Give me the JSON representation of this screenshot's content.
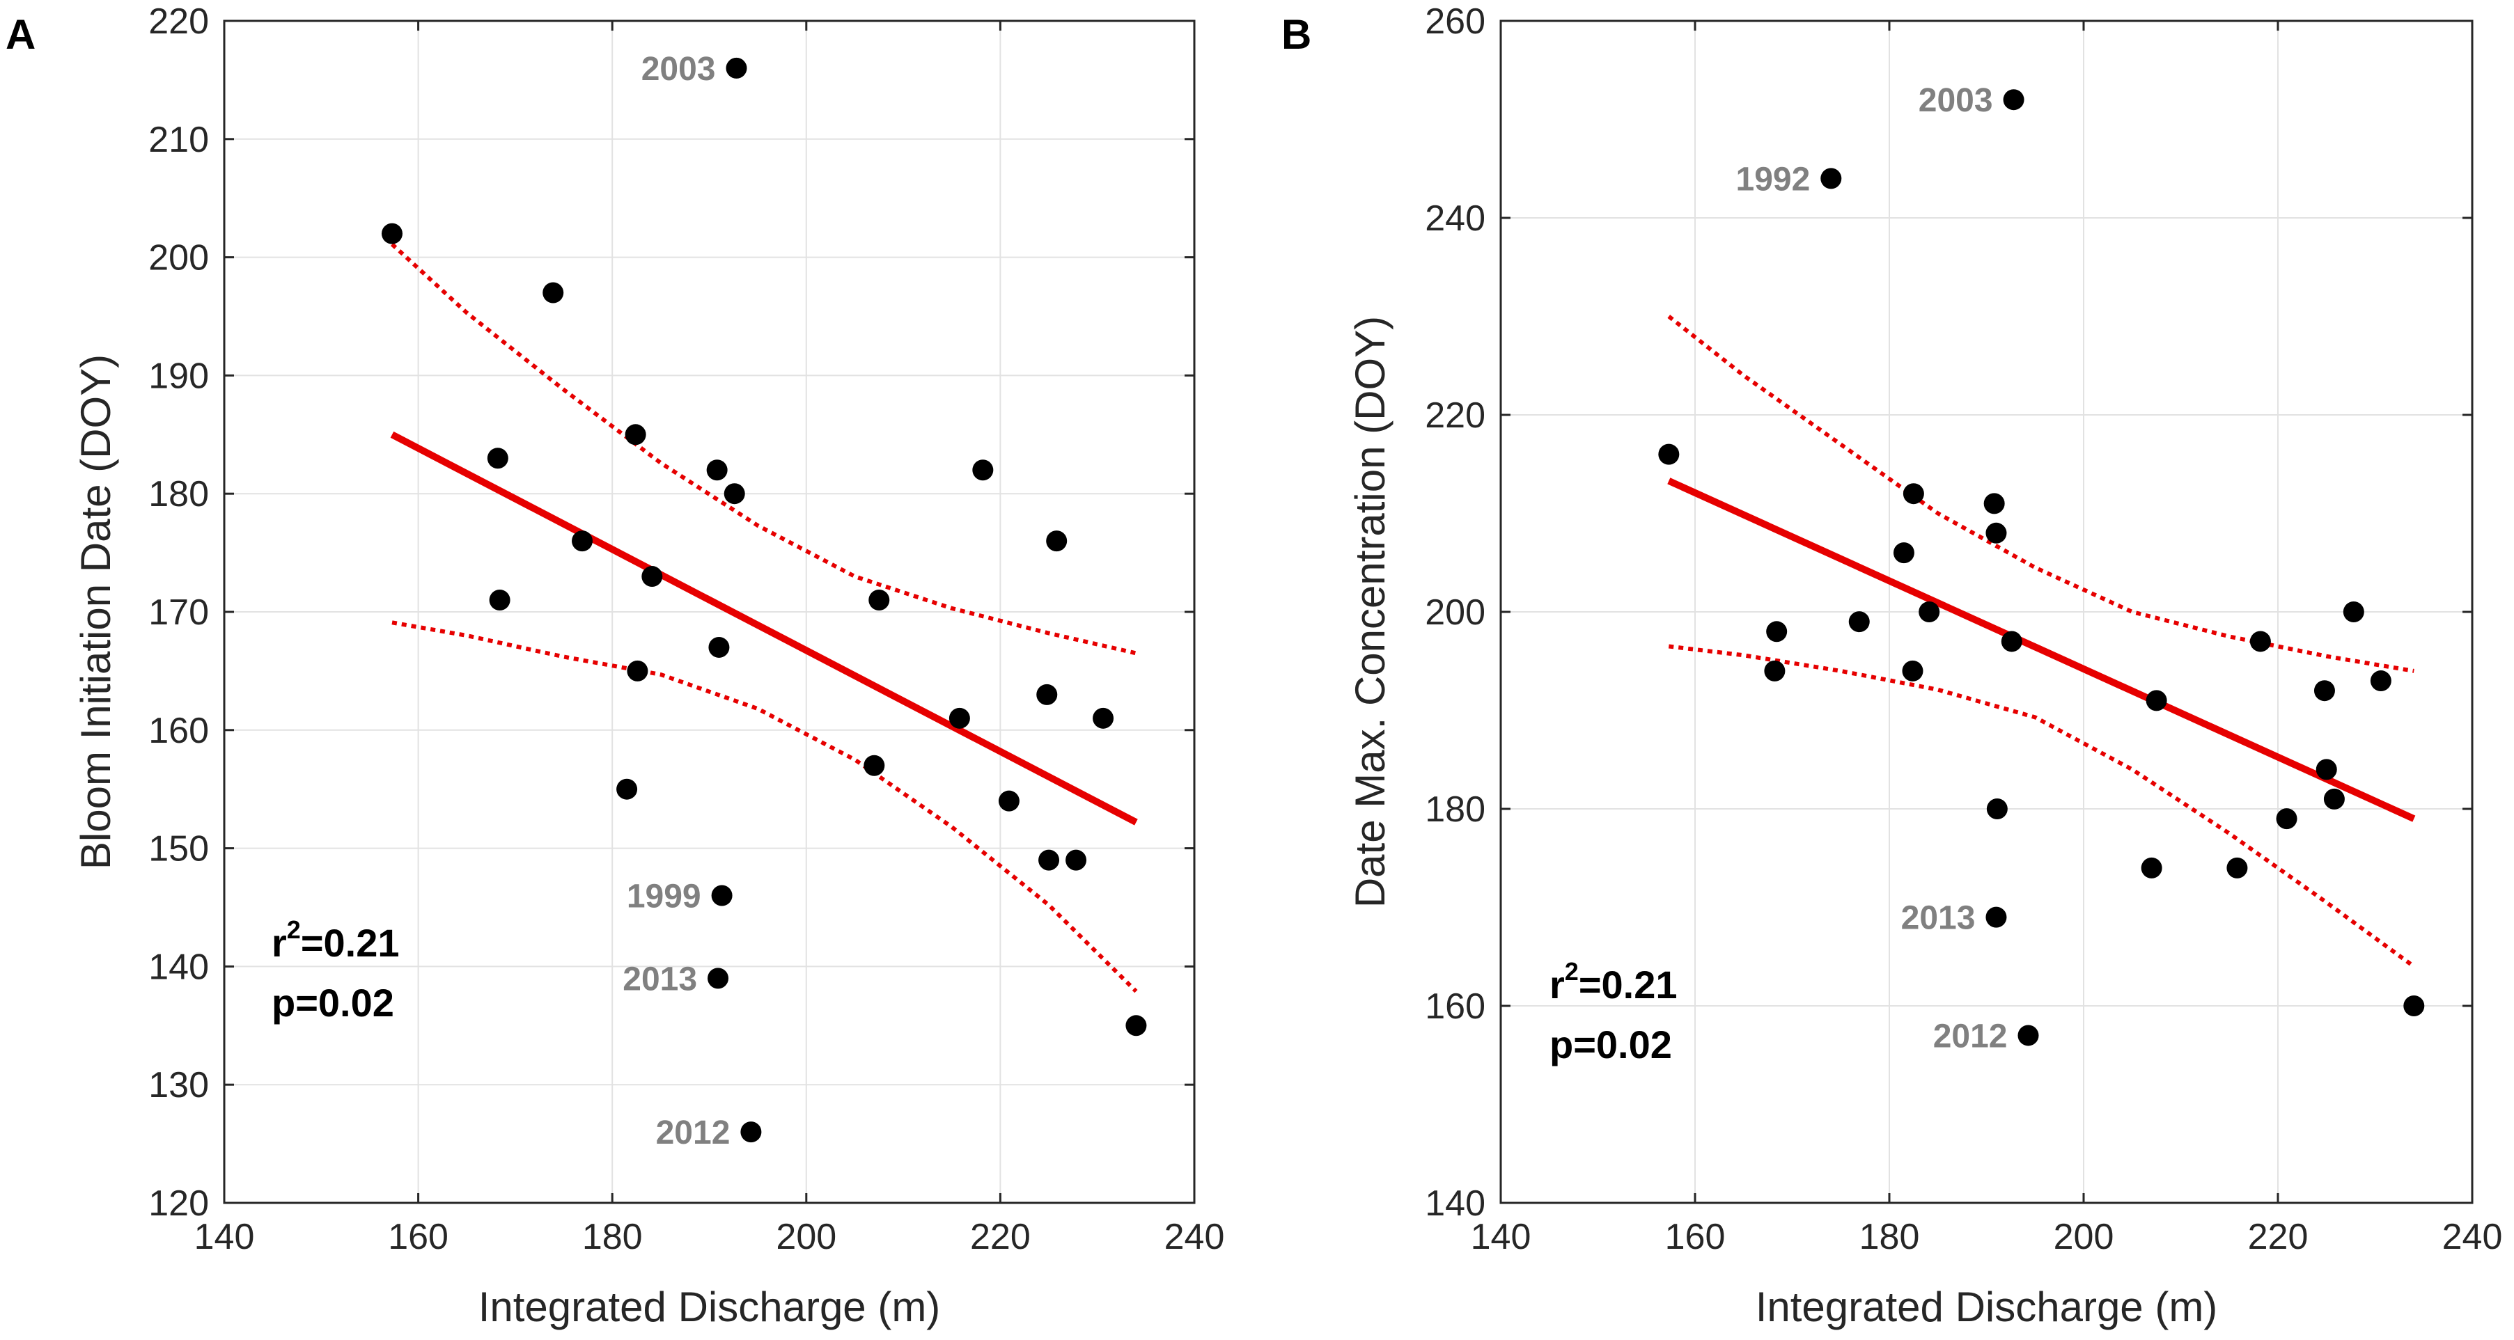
{
  "chart_data": [
    {
      "type": "scatter",
      "panel_letter": "A",
      "title": "",
      "xlabel": "Integrated Discharge (m)",
      "ylabel": "Bloom Initiation Date (DOY)",
      "xlim": [
        140,
        240
      ],
      "ylim": [
        120,
        220
      ],
      "xticks": [
        140,
        160,
        180,
        200,
        220,
        240
      ],
      "yticks": [
        120,
        130,
        140,
        150,
        160,
        170,
        180,
        190,
        200,
        210,
        220
      ],
      "grid": true,
      "points": {
        "x": [
          157.3,
          168.2,
          168.4,
          173.9,
          176.9,
          181.5,
          182.4,
          182.6,
          184.1,
          190.8,
          191.0,
          191.3,
          192.6,
          192.8,
          207.0,
          207.5,
          215.8,
          218.2,
          220.9,
          224.8,
          225.0,
          225.8,
          227.8,
          230.6,
          234.0,
          194.3,
          190.9
        ],
        "y": [
          202,
          183,
          171,
          197,
          176,
          155,
          185,
          165,
          173,
          182,
          167,
          146,
          180,
          216,
          157,
          171,
          161,
          182,
          154,
          163,
          149,
          176,
          149,
          161,
          135,
          126,
          139
        ]
      },
      "fit_line": {
        "x": [
          157.3,
          234.0
        ],
        "y": [
          185.0,
          152.2
        ]
      },
      "confidence_upper": {
        "x": [
          157.3,
          165,
          175,
          185,
          195,
          205,
          215,
          225,
          234
        ],
        "y": [
          201.1,
          195.3,
          188.8,
          182.6,
          177.3,
          173.0,
          170.3,
          168.2,
          166.5
        ]
      },
      "confidence_lower": {
        "x": [
          157.3,
          165,
          175,
          185,
          195,
          205,
          215,
          225,
          234
        ],
        "y": [
          169.1,
          168.0,
          166.2,
          164.7,
          161.8,
          157.5,
          151.8,
          145.2,
          137.9
        ]
      },
      "annotations": [
        {
          "text": "2003",
          "x": 192.8,
          "y": 216
        },
        {
          "text": "1999",
          "x": 191.3,
          "y": 146
        },
        {
          "text": "2013",
          "x": 190.9,
          "y": 139
        },
        {
          "text": "2012",
          "x": 194.3,
          "y": 126
        }
      ],
      "stats": {
        "r2_label": "r",
        "r2_sup": "2",
        "r2_value": "=0.21",
        "p_text": "p=0.02"
      }
    },
    {
      "type": "scatter",
      "panel_letter": "B",
      "title": "",
      "xlabel": "Integrated Discharge (m)",
      "ylabel": "Date Max. Concentration (DOY)",
      "xlim": [
        140,
        240
      ],
      "ylim": [
        140,
        260
      ],
      "xticks": [
        140,
        160,
        180,
        200,
        220,
        240
      ],
      "yticks": [
        140,
        160,
        180,
        200,
        220,
        240,
        260
      ],
      "grid": true,
      "points": {
        "x": [
          157.3,
          168.2,
          168.4,
          176.9,
          181.5,
          182.4,
          182.5,
          184.1,
          190.8,
          191.0,
          191.1,
          192.6,
          192.8,
          174.0,
          207.0,
          207.5,
          215.8,
          218.2,
          220.9,
          224.8,
          225.0,
          225.8,
          227.8,
          230.6,
          234.0,
          191.0,
          194.3
        ],
        "y": [
          216,
          194,
          198,
          199,
          206,
          194,
          212,
          200,
          211,
          208,
          180,
          197,
          252,
          244,
          174,
          191,
          174,
          197,
          179,
          192,
          184,
          181,
          200,
          193,
          160,
          169,
          157
        ]
      },
      "fit_line": {
        "x": [
          157.3,
          234.0
        ],
        "y": [
          213.3,
          179.0
        ]
      },
      "confidence_upper": {
        "x": [
          157.3,
          165,
          175,
          185,
          195,
          205,
          215,
          225,
          234
        ],
        "y": [
          230.0,
          224.0,
          217.0,
          210.0,
          204.5,
          200.0,
          197.5,
          195.5,
          194.0
        ]
      },
      "confidence_lower": {
        "x": [
          157.3,
          165,
          175,
          185,
          195,
          205,
          215,
          225,
          234
        ],
        "y": [
          196.5,
          195.6,
          194.0,
          192.1,
          189.3,
          184.0,
          177.5,
          170.5,
          164.0
        ]
      },
      "annotations": [
        {
          "text": "2003",
          "x": 192.8,
          "y": 252
        },
        {
          "text": "1992",
          "x": 174.0,
          "y": 244
        },
        {
          "text": "2013",
          "x": 191.0,
          "y": 169
        },
        {
          "text": "2012",
          "x": 194.3,
          "y": 157
        }
      ],
      "stats": {
        "r2_label": "r",
        "r2_sup": "2",
        "r2_value": "=0.21",
        "p_text": "p=0.02"
      }
    }
  ],
  "colors": {
    "points": "#000000",
    "fit_line": "#e60000",
    "confidence": "#e60000",
    "grid": "#e2e2e2",
    "axes": "#262626",
    "annotations": "#808080"
  }
}
